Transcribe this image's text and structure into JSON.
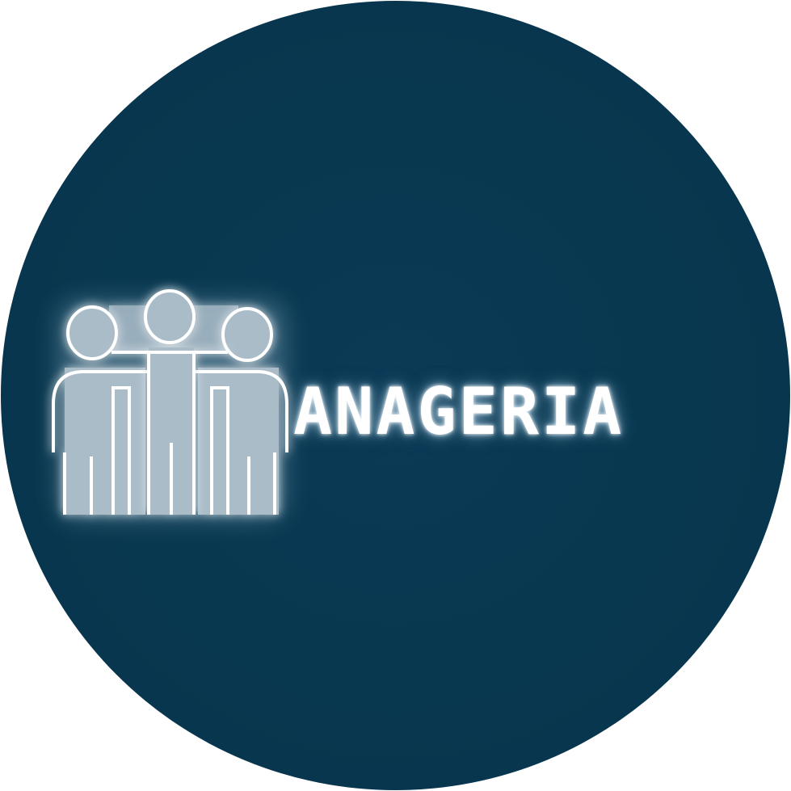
{
  "logo": {
    "wordmark": "ANAGERIA",
    "icon": "group-of-people-icon",
    "colors": {
      "background": "#08374f",
      "figure_fill": "#aabcc8",
      "outline": "#ffffff",
      "glow": "#cfe3f0",
      "page": "#ffffff"
    }
  }
}
